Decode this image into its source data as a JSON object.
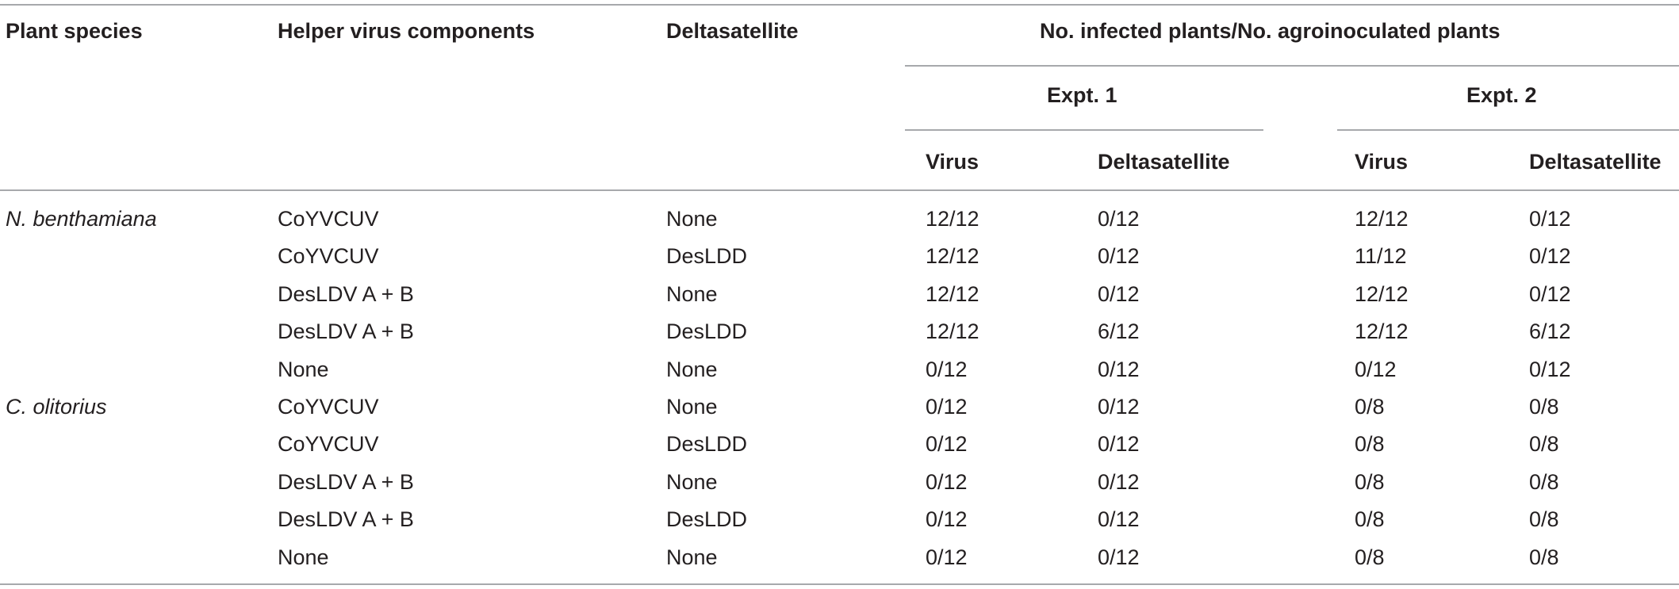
{
  "header": {
    "plant_species": "Plant species",
    "helper_virus": "Helper virus components",
    "deltasatellite": "Deltasatellite",
    "group_title": "No. infected plants/No. agroinoculated plants",
    "expt1": "Expt. 1",
    "expt2": "Expt. 2",
    "virus1": "Virus",
    "delta1": "Deltasatellite",
    "virus2": "Virus",
    "delta2": "Deltasatellite"
  },
  "rows": [
    {
      "species": "N. benthamiana",
      "helper": "CoYVCUV",
      "delta": "None",
      "e1_virus": "12/12",
      "e1_delta": "0/12",
      "e2_virus": "12/12",
      "e2_delta": "0/12"
    },
    {
      "species": "",
      "helper": "CoYVCUV",
      "delta": "DesLDD",
      "e1_virus": "12/12",
      "e1_delta": "0/12",
      "e2_virus": "11/12",
      "e2_delta": "0/12"
    },
    {
      "species": "",
      "helper": "DesLDV A + B",
      "delta": "None",
      "e1_virus": "12/12",
      "e1_delta": "0/12",
      "e2_virus": "12/12",
      "e2_delta": "0/12"
    },
    {
      "species": "",
      "helper": "DesLDV A + B",
      "delta": "DesLDD",
      "e1_virus": "12/12",
      "e1_delta": "6/12",
      "e2_virus": "12/12",
      "e2_delta": "6/12"
    },
    {
      "species": "",
      "helper": "None",
      "delta": "None",
      "e1_virus": "0/12",
      "e1_delta": "0/12",
      "e2_virus": "0/12",
      "e2_delta": "0/12"
    },
    {
      "species": "C. olitorius",
      "helper": "CoYVCUV",
      "delta": "None",
      "e1_virus": "0/12",
      "e1_delta": "0/12",
      "e2_virus": "0/8",
      "e2_delta": "0/8"
    },
    {
      "species": "",
      "helper": "CoYVCUV",
      "delta": "DesLDD",
      "e1_virus": "0/12",
      "e1_delta": "0/12",
      "e2_virus": "0/8",
      "e2_delta": "0/8"
    },
    {
      "species": "",
      "helper": "DesLDV A + B",
      "delta": "None",
      "e1_virus": "0/12",
      "e1_delta": "0/12",
      "e2_virus": "0/8",
      "e2_delta": "0/8"
    },
    {
      "species": "",
      "helper": "DesLDV A + B",
      "delta": "DesLDD",
      "e1_virus": "0/12",
      "e1_delta": "0/12",
      "e2_virus": "0/8",
      "e2_delta": "0/8"
    },
    {
      "species": "",
      "helper": "None",
      "delta": "None",
      "e1_virus": "0/12",
      "e1_delta": "0/12",
      "e2_virus": "0/8",
      "e2_delta": "0/8"
    }
  ]
}
